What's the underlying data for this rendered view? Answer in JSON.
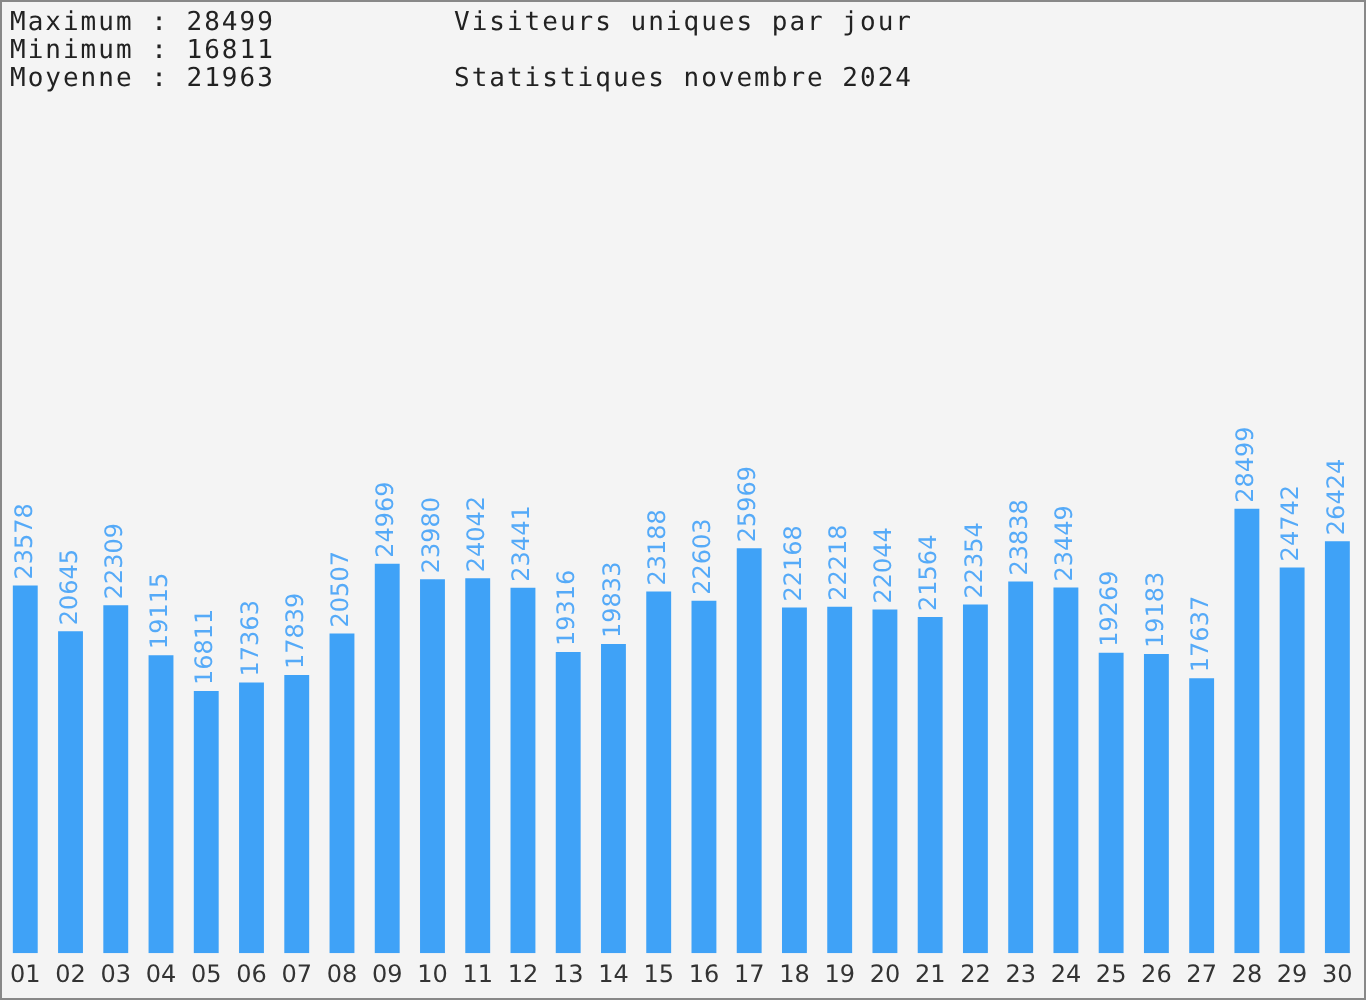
{
  "chart_data": {
    "type": "bar",
    "title": "Visiteurs uniques par jour",
    "subtitle": "Statistiques novembre 2024",
    "annotations": [
      "Maximum : 28499",
      "Minimum : 16811",
      "Moyenne : 21963"
    ],
    "categories": [
      "01",
      "02",
      "03",
      "04",
      "05",
      "06",
      "07",
      "08",
      "09",
      "10",
      "11",
      "12",
      "13",
      "14",
      "15",
      "16",
      "17",
      "18",
      "19",
      "20",
      "21",
      "22",
      "23",
      "24",
      "25",
      "26",
      "27",
      "28",
      "29",
      "30"
    ],
    "values": [
      23578,
      20645,
      22309,
      19115,
      16811,
      17363,
      17839,
      20507,
      24969,
      23980,
      24042,
      23441,
      19316,
      19833,
      23188,
      22603,
      25969,
      22168,
      22218,
      22044,
      21564,
      22354,
      23838,
      23449,
      19269,
      19183,
      17637,
      28499,
      24742,
      26424
    ],
    "color": "#3fa2f7",
    "ylim": [
      0,
      61000
    ],
    "tick_labels": "x",
    "data_labels": true,
    "grid": false,
    "legend": false
  }
}
